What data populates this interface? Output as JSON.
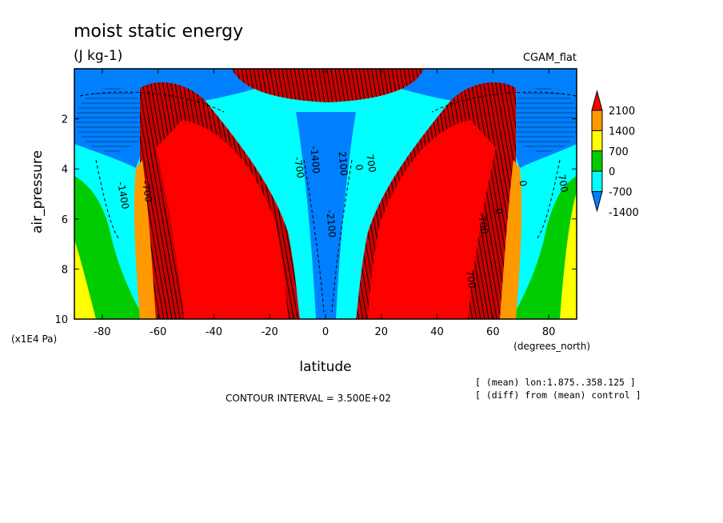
{
  "chart_data": {
    "type": "heatmap",
    "title": "moist static energy",
    "subtitle": "(J kg-1)",
    "case_label": "CGAM_flat",
    "xlabel": "latitude",
    "x_units": "(degrees_north)",
    "ylabel": "air_pressure",
    "y_units": "(x1E4 Pa)",
    "xlim": [
      -90,
      90
    ],
    "ylim": [
      10,
      0
    ],
    "x_ticks": [
      -80,
      -60,
      -40,
      -20,
      0,
      20,
      40,
      60,
      80
    ],
    "y_ticks": [
      2,
      4,
      6,
      8,
      10
    ],
    "colorbar": {
      "levels": [
        2100,
        1400,
        700,
        0,
        -700,
        -1400
      ],
      "colors": [
        "#ff0000",
        "#ff9900",
        "#ffff00",
        "#00cc00",
        "#00ffff",
        "#0080ff"
      ]
    },
    "contour_interval": "CONTOUR INTERVAL = 3.500E+02",
    "notes": [
      "[ (mean) lon:1.875..358.125 ]",
      "[ (diff) from (mean) control ]"
    ],
    "contour_labels": [
      "-1400",
      "-700",
      "0",
      "700",
      "2100",
      "-2100",
      "-1400",
      "-700",
      "-700",
      "0",
      "700",
      "0",
      "700"
    ]
  }
}
